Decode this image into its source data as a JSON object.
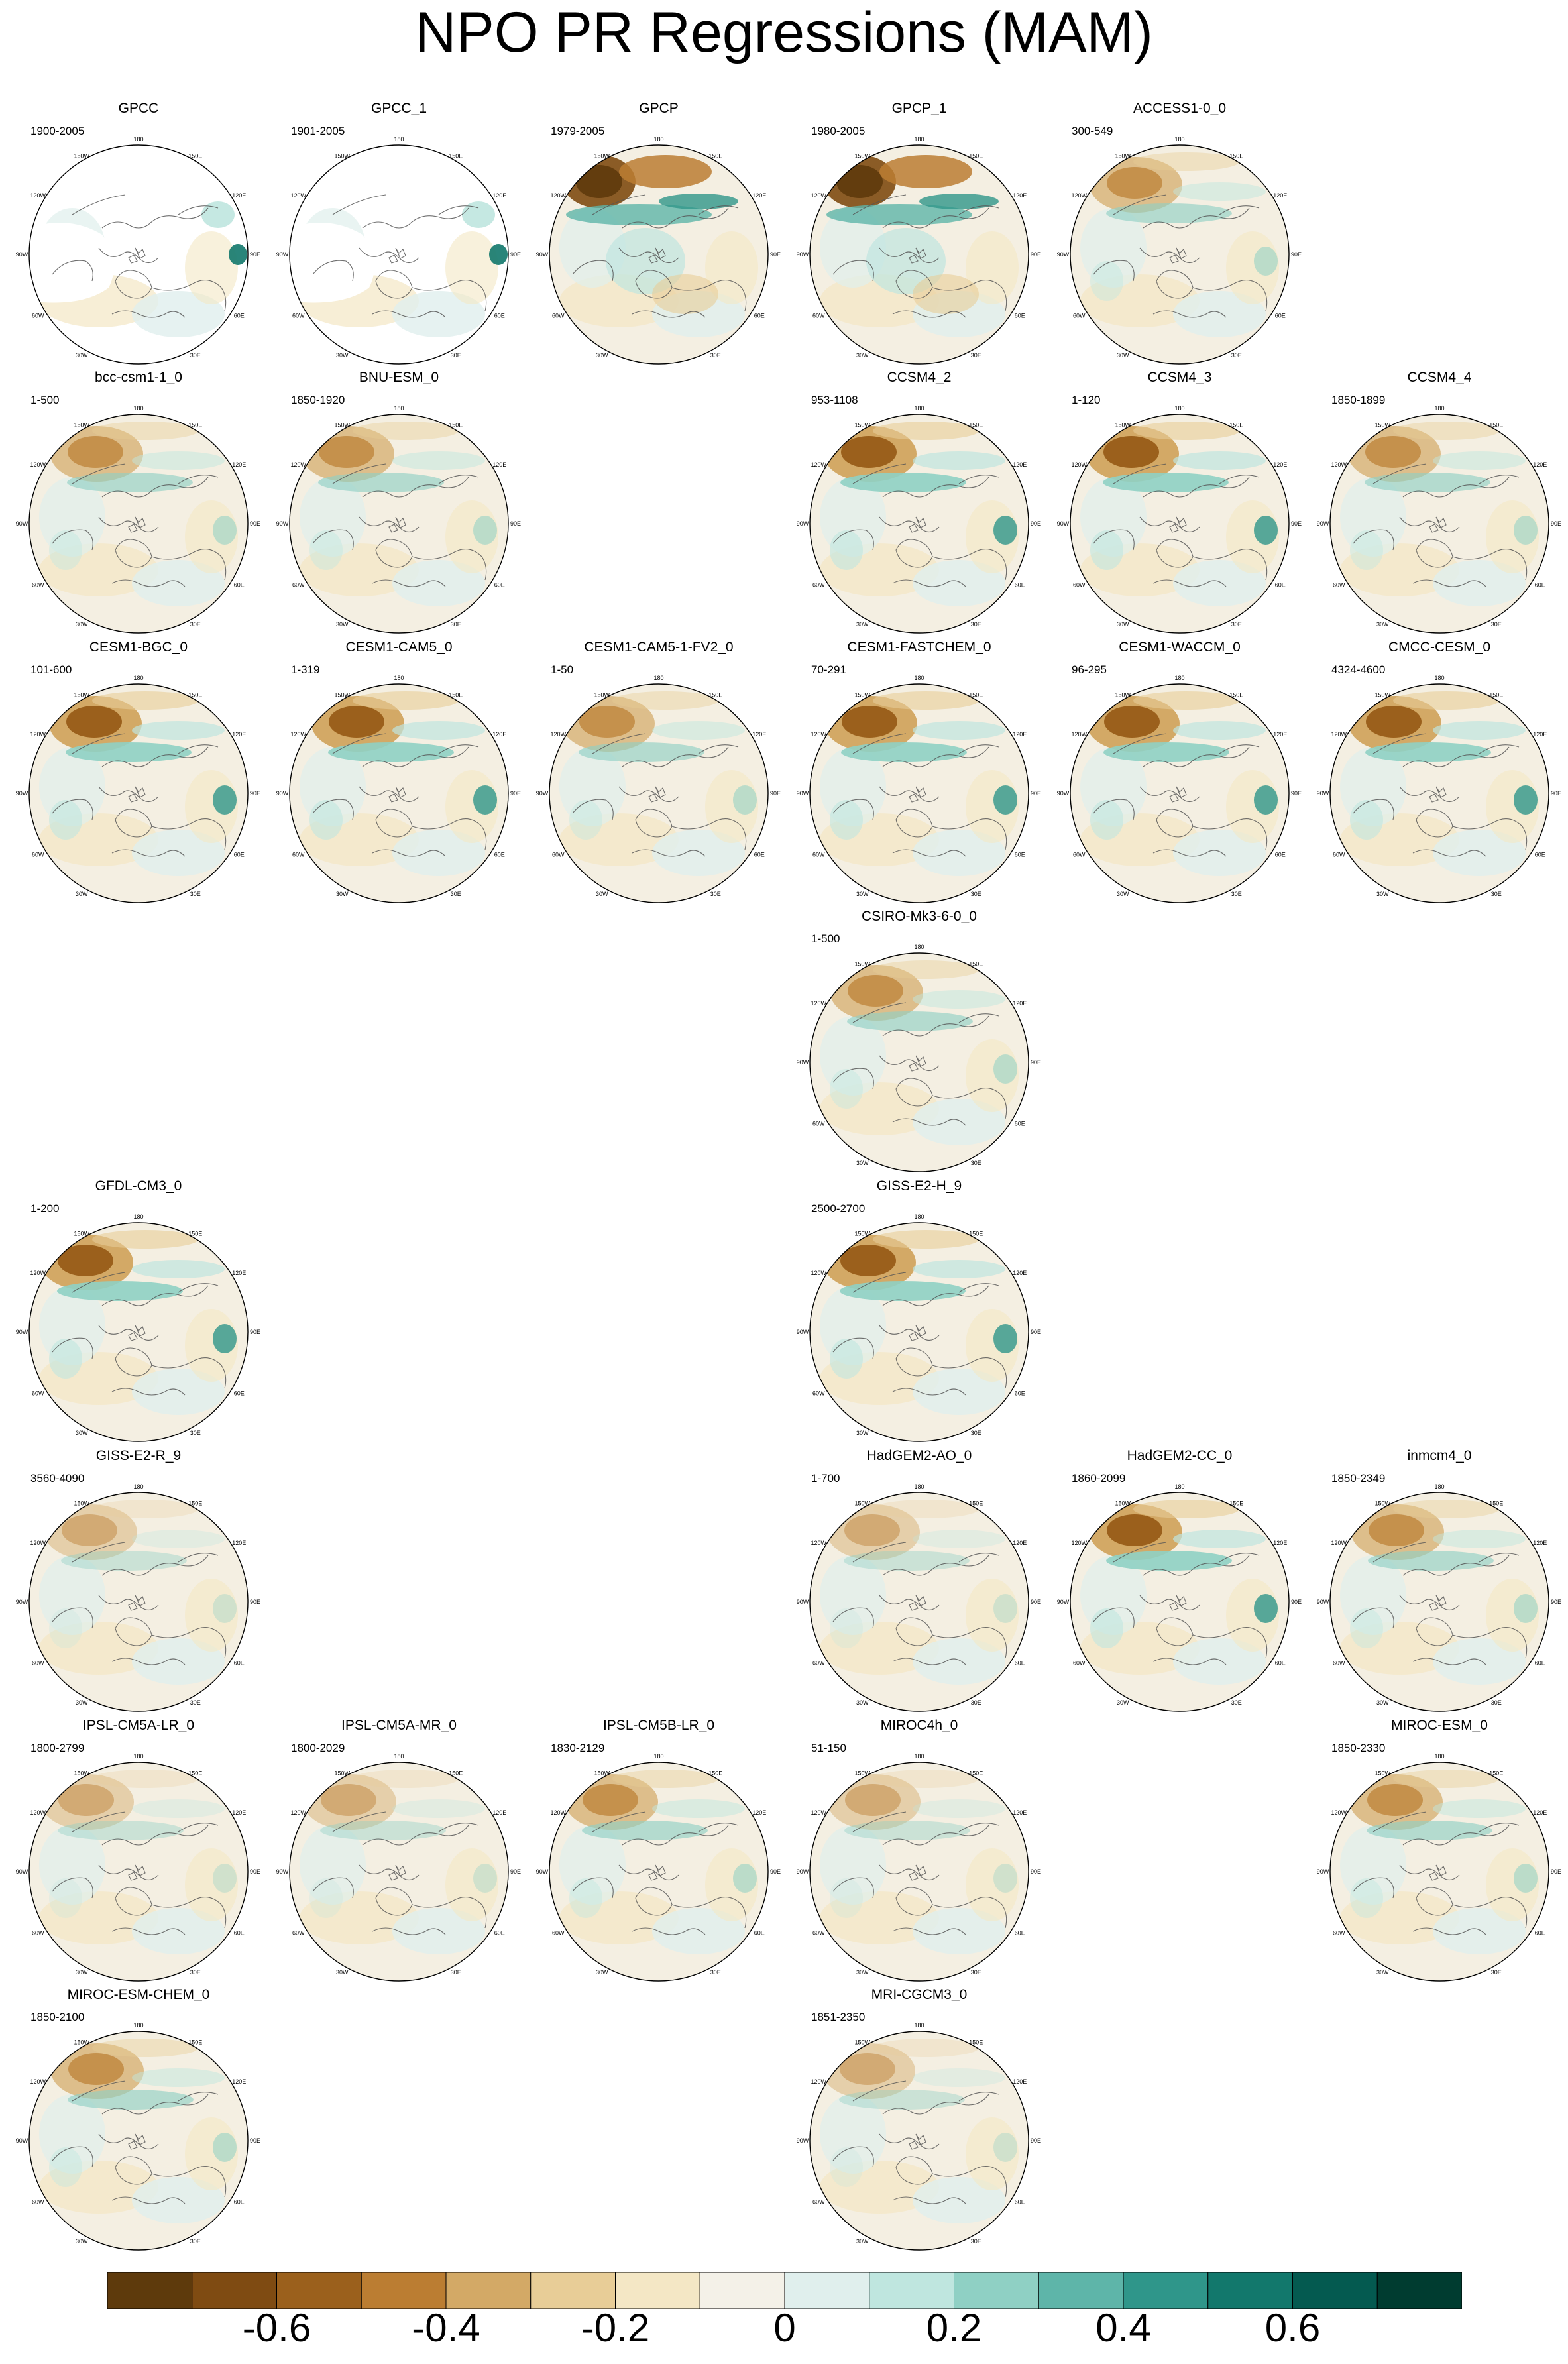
{
  "title": "NPO PR Regressions (MAM)",
  "palette": [
    "#5e3a0c",
    "#7f4b12",
    "#9b601c",
    "#bb7d32",
    "#d3a966",
    "#e8cd97",
    "#f4e7c5",
    "#f4f1e8",
    "#e0efed",
    "#bfe6df",
    "#8fd0c4",
    "#5eb5a9",
    "#2f968a",
    "#12786c",
    "#045a50",
    "#003c30"
  ],
  "lon_labels": [
    {
      "t": "180"
    },
    {
      "t": "150E"
    },
    {
      "t": "120E"
    },
    {
      "t": "90E"
    },
    {
      "t": "60E"
    },
    {
      "t": "30E"
    },
    {
      "t": "0"
    },
    {
      "t": "30W"
    },
    {
      "t": "60W"
    },
    {
      "t": "90W"
    },
    {
      "t": "120W"
    },
    {
      "t": "150W"
    }
  ],
  "panels": [
    {
      "name": "GPCC",
      "years": "1900-2005",
      "row": 0,
      "col": 0,
      "style": "gpcc"
    },
    {
      "name": "GPCC_1",
      "years": "1901-2005",
      "row": 0,
      "col": 1,
      "style": "gpcc"
    },
    {
      "name": "GPCP",
      "years": "1979-2005",
      "row": 0,
      "col": 2,
      "style": "gpcp"
    },
    {
      "name": "GPCP_1",
      "years": "1980-2005",
      "row": 0,
      "col": 3,
      "style": "gpcp"
    },
    {
      "name": "ACCESS1-0_0",
      "years": "300-549",
      "row": 0,
      "col": 4,
      "style": "model"
    },
    {
      "name": "bcc-csm1-1_0",
      "years": "1-500",
      "row": 1,
      "col": 0,
      "style": "model"
    },
    {
      "name": "BNU-ESM_0",
      "years": "1850-1920",
      "row": 1,
      "col": 1,
      "style": "model"
    },
    {
      "name": "CCSM4_2",
      "years": "953-1108",
      "row": 1,
      "col": 3,
      "style": "strong"
    },
    {
      "name": "CCSM4_3",
      "years": "1-120",
      "row": 1,
      "col": 4,
      "style": "strong"
    },
    {
      "name": "CCSM4_4",
      "years": "1850-1899",
      "row": 1,
      "col": 5,
      "style": "model"
    },
    {
      "name": "CESM1-BGC_0",
      "years": "101-600",
      "row": 2,
      "col": 0,
      "style": "strong"
    },
    {
      "name": "CESM1-CAM5_0",
      "years": "1-319",
      "row": 2,
      "col": 1,
      "style": "strong"
    },
    {
      "name": "CESM1-CAM5-1-FV2_0",
      "years": "1-50",
      "row": 2,
      "col": 2,
      "style": "model"
    },
    {
      "name": "CESM1-FASTCHEM_0",
      "years": "70-291",
      "row": 2,
      "col": 3,
      "style": "strong"
    },
    {
      "name": "CESM1-WACCM_0",
      "years": "96-295",
      "row": 2,
      "col": 4,
      "style": "strong"
    },
    {
      "name": "CMCC-CESM_0",
      "years": "4324-4600",
      "row": 2,
      "col": 5,
      "style": "strong"
    },
    {
      "name": "CSIRO-Mk3-6-0_0",
      "years": "1-500",
      "row": 3,
      "col": 3,
      "style": "model"
    },
    {
      "name": "GFDL-CM3_0",
      "years": "1-200",
      "row": 4,
      "col": 0,
      "style": "strong"
    },
    {
      "name": "GISS-E2-H_9",
      "years": "2500-2700",
      "row": 4,
      "col": 3,
      "style": "strong"
    },
    {
      "name": "GISS-E2-R_9",
      "years": "3560-4090",
      "row": 5,
      "col": 0,
      "style": "weak"
    },
    {
      "name": "HadGEM2-AO_0",
      "years": "1-700",
      "row": 5,
      "col": 3,
      "style": "weak"
    },
    {
      "name": "HadGEM2-CC_0",
      "years": "1860-2099",
      "row": 5,
      "col": 4,
      "style": "strong"
    },
    {
      "name": "inmcm4_0",
      "years": "1850-2349",
      "row": 5,
      "col": 5,
      "style": "model"
    },
    {
      "name": "IPSL-CM5A-LR_0",
      "years": "1800-2799",
      "row": 6,
      "col": 0,
      "style": "weak"
    },
    {
      "name": "IPSL-CM5A-MR_0",
      "years": "1800-2029",
      "row": 6,
      "col": 1,
      "style": "weak"
    },
    {
      "name": "IPSL-CM5B-LR_0",
      "years": "1830-2129",
      "row": 6,
      "col": 2,
      "style": "model"
    },
    {
      "name": "MIROC4h_0",
      "years": "51-150",
      "row": 6,
      "col": 3,
      "style": "weak"
    },
    {
      "name": "MIROC-ESM_0",
      "years": "1850-2330",
      "row": 6,
      "col": 5,
      "style": "model"
    },
    {
      "name": "MIROC-ESM-CHEM_0",
      "years": "1850-2100",
      "row": 7,
      "col": 0,
      "style": "model"
    },
    {
      "name": "MRI-CGCM3_0",
      "years": "1851-2350",
      "row": 7,
      "col": 3,
      "style": "weak"
    }
  ],
  "colorbar": {
    "labels": [
      "-0.6",
      "-0.4",
      "-0.2",
      "0",
      "0.2",
      "0.4",
      "0.6"
    ]
  }
}
